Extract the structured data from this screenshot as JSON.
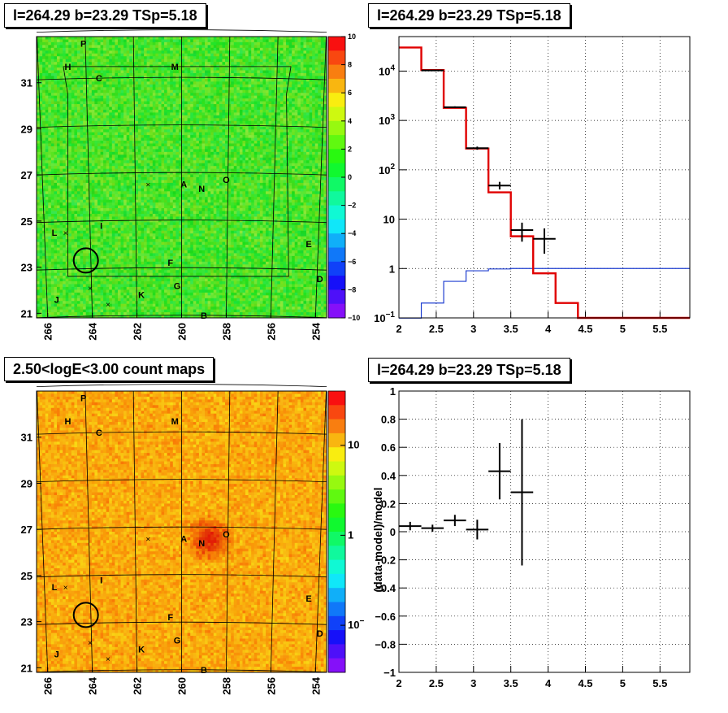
{
  "titles": {
    "tl": "l=264.29 b=23.29 TSp=5.18",
    "tr": "l=264.29 b=23.29 TSp=5.18",
    "bl": "2.50<logE<3.00 count maps",
    "br": "l=264.29 b=23.29 TSp=5.18"
  },
  "map_labels": [
    {
      "t": "P",
      "l": 264.4,
      "b": 32.7
    },
    {
      "t": "H",
      "l": 265.1,
      "b": 31.7
    },
    {
      "t": "C",
      "l": 263.7,
      "b": 31.2
    },
    {
      "t": "M",
      "l": 260.3,
      "b": 31.7
    },
    {
      "t": "A",
      "l": 259.9,
      "b": 26.6
    },
    {
      "t": "N",
      "l": 259.1,
      "b": 26.4
    },
    {
      "t": "O",
      "l": 258.0,
      "b": 26.8
    },
    {
      "t": "L",
      "l": 265.7,
      "b": 24.5
    },
    {
      "t": "I",
      "l": 263.6,
      "b": 24.8
    },
    {
      "t": "E",
      "l": 254.3,
      "b": 24.0
    },
    {
      "t": "F",
      "l": 260.5,
      "b": 23.2
    },
    {
      "t": "D",
      "l": 253.8,
      "b": 22.5
    },
    {
      "t": "G",
      "l": 260.2,
      "b": 22.2
    },
    {
      "t": "K",
      "l": 261.8,
      "b": 21.8
    },
    {
      "t": "J",
      "l": 265.6,
      "b": 21.6
    },
    {
      "t": "B",
      "l": 259.0,
      "b": 20.9
    }
  ],
  "map_crosses": [
    {
      "l": 261.5,
      "b": 26.6
    },
    {
      "l": 265.2,
      "b": 24.5
    },
    {
      "l": 264.1,
      "b": 22.1
    },
    {
      "l": 263.3,
      "b": 21.4
    }
  ],
  "source_circle": {
    "l": 264.29,
    "b": 23.29
  },
  "map_axes": {
    "x_ticks": [
      "266",
      "264",
      "262",
      "260",
      "258",
      "256",
      "254"
    ],
    "y_ticks": [
      "21",
      "23",
      "25",
      "27",
      "29",
      "31"
    ]
  },
  "chart_data": [
    {
      "type": "heatmap",
      "title": "l=264.29 b=23.29 TSp=5.18",
      "colorbar": {
        "ticks": [
          "10",
          "8",
          "6",
          "4",
          "2",
          "0",
          "−2",
          "−4",
          "−6",
          "−8",
          "−10"
        ],
        "range": [
          -10,
          10
        ]
      },
      "xlim": [
        266.5,
        253.5
      ],
      "ylim": [
        20.8,
        33.0
      ]
    },
    {
      "type": "line",
      "title": "l=264.29 b=23.29 TSp=5.18",
      "log_y": true,
      "xlim": [
        2.0,
        5.9
      ],
      "ylim": [
        0.1,
        50000
      ],
      "x_ticks": [
        "2",
        "2.5",
        "3",
        "3.5",
        "4",
        "4.5",
        "5",
        "5.5"
      ],
      "y_ticks": [
        {
          "v": 0.1,
          "base": "10",
          "exp": "−1"
        },
        {
          "v": 1,
          "base": "1",
          "exp": ""
        },
        {
          "v": 10,
          "base": "10",
          "exp": ""
        },
        {
          "v": 100,
          "base": "10",
          "exp": "2"
        },
        {
          "v": 1000,
          "base": "10",
          "exp": "3"
        },
        {
          "v": 10000,
          "base": "10",
          "exp": "4"
        }
      ],
      "model_steps": [
        {
          "x0": 2.0,
          "x1": 2.3,
          "y": 30000
        },
        {
          "x0": 2.3,
          "x1": 2.6,
          "y": 10500
        },
        {
          "x0": 2.6,
          "x1": 2.9,
          "y": 1800
        },
        {
          "x0": 2.9,
          "x1": 3.2,
          "y": 270
        },
        {
          "x0": 3.2,
          "x1": 3.5,
          "y": 35
        },
        {
          "x0": 3.5,
          "x1": 3.8,
          "y": 4.5
        },
        {
          "x0": 3.8,
          "x1": 4.1,
          "y": 0.8
        },
        {
          "x0": 4.1,
          "x1": 4.4,
          "y": 0.2
        },
        {
          "x0": 4.4,
          "x1": 5.9,
          "y": 0.1
        }
      ],
      "bg_steps": [
        {
          "x0": 2.0,
          "x1": 2.3,
          "y": 0.06
        },
        {
          "x0": 2.3,
          "x1": 2.6,
          "y": 0.2
        },
        {
          "x0": 2.6,
          "x1": 2.9,
          "y": 0.55
        },
        {
          "x0": 2.9,
          "x1": 3.2,
          "y": 0.9
        },
        {
          "x0": 3.2,
          "x1": 3.5,
          "y": 0.98
        },
        {
          "x0": 3.5,
          "x1": 5.9,
          "y": 1.0
        }
      ],
      "data_points": [
        {
          "x": 2.45,
          "y": 10300,
          "xerr": 0.15,
          "ylo": 10100,
          "yhi": 10500
        },
        {
          "x": 2.75,
          "y": 1850,
          "xerr": 0.15,
          "ylo": 1780,
          "yhi": 1930
        },
        {
          "x": 3.05,
          "y": 275,
          "xerr": 0.15,
          "ylo": 255,
          "yhi": 295
        },
        {
          "x": 3.35,
          "y": 48,
          "xerr": 0.15,
          "ylo": 40,
          "yhi": 57
        },
        {
          "x": 3.65,
          "y": 6.0,
          "xerr": 0.15,
          "ylo": 3.5,
          "yhi": 8.5
        },
        {
          "x": 3.95,
          "y": 4.0,
          "xerr": 0.15,
          "ylo": 2.0,
          "yhi": 6.5
        }
      ]
    },
    {
      "type": "heatmap",
      "title": "2.50<logE<3.00 count maps",
      "log_z": true,
      "colorbar": {
        "ticks": [
          {
            "v": 10,
            "base": "10",
            "exp": ""
          },
          {
            "v": 1,
            "base": "1",
            "exp": ""
          },
          {
            "v": 0.1,
            "base": "10",
            "exp": "−1"
          }
        ],
        "range": [
          0.03,
          40
        ]
      },
      "xlim": [
        266.5,
        253.5
      ],
      "ylim": [
        20.8,
        33.0
      ]
    },
    {
      "type": "scatter",
      "title": "l=264.29 b=23.29 TSp=5.18",
      "ylabel": "(data-model)/model",
      "xlim": [
        2.0,
        5.9
      ],
      "ylim": [
        -1,
        1
      ],
      "x_ticks": [
        "2",
        "2.5",
        "3",
        "3.5",
        "4",
        "4.5",
        "5",
        "5.5"
      ],
      "y_ticks": [
        "−1",
        "−0.8",
        "−0.6",
        "−0.4",
        "−0.2",
        "0",
        "0.2",
        "0.4",
        "0.6",
        "0.8",
        "1"
      ],
      "points": [
        {
          "x": 2.15,
          "y": 0.04,
          "xerr": 0.15,
          "yerr": 0.03
        },
        {
          "x": 2.45,
          "y": 0.025,
          "xerr": 0.15,
          "yerr": 0.025
        },
        {
          "x": 2.75,
          "y": 0.08,
          "xerr": 0.15,
          "yerr": 0.04
        },
        {
          "x": 3.05,
          "y": 0.015,
          "xerr": 0.15,
          "yerr": 0.07
        },
        {
          "x": 3.35,
          "y": 0.43,
          "xerr": 0.15,
          "yerr": 0.2
        },
        {
          "x": 3.65,
          "y": 0.28,
          "xerr": 0.15,
          "ylo": -0.24,
          "yhi": 0.8
        }
      ]
    }
  ]
}
